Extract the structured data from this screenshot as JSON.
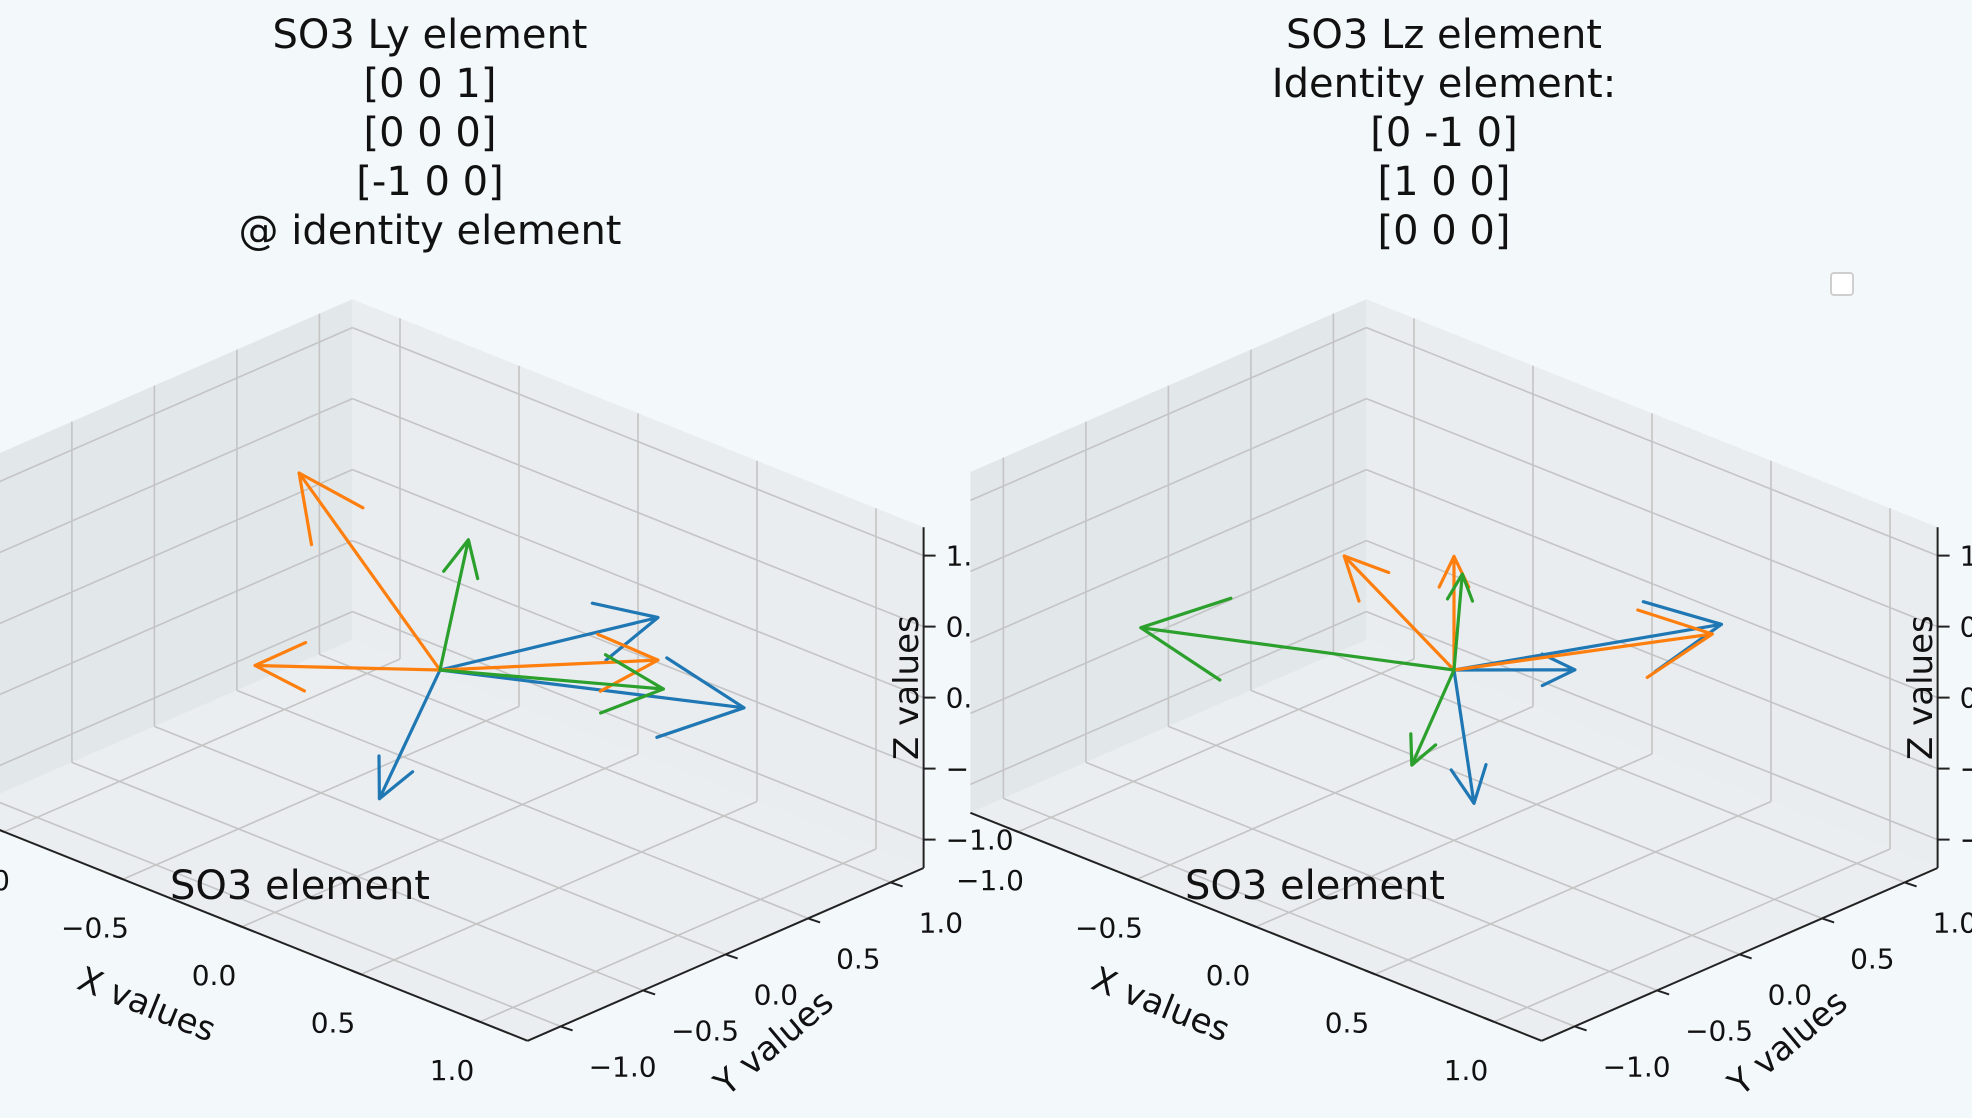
{
  "colors": {
    "blue": "#1f77b4",
    "orange": "#ff7f0e",
    "green": "#2ca02c",
    "pane": "#eef1f3",
    "grid": "#c4c4c4"
  },
  "chart_data": [
    {
      "type": "vector3d",
      "title_lines": [
        "SO3 Ly element",
        "[0 0  1]",
        "[0 0 0]",
        "[-1 0  0]",
        "@ identity element"
      ],
      "annotation": "SO3 element",
      "xlabel": "X values",
      "ylabel": "Y values",
      "zlabel": "Z values",
      "xlim": [
        -1.2,
        1.2
      ],
      "ylim": [
        -1.2,
        1.2
      ],
      "zlim": [
        -1.2,
        1.2
      ],
      "ticks": [
        -1.0,
        -0.5,
        0.0,
        0.5,
        1.0
      ],
      "tick_labels": [
        "−1.0",
        "−0.5",
        "0.0",
        "0.5",
        "1.0"
      ],
      "origin": [
        0,
        0,
        0
      ],
      "series": [
        {
          "name": "blue",
          "color": "#1f77b4",
          "vectors": [
            [
              0.3,
              -0.8,
              -0.3
            ],
            [
              1.0,
              0.4,
              0.2
            ],
            [
              0.5,
              0.6,
              0.4
            ]
          ]
        },
        {
          "name": "orange",
          "color": "#ff7f0e",
          "vectors": [
            [
              -0.8,
              0.3,
              0.7
            ],
            [
              0.5,
              0.6,
              0.1
            ],
            [
              -0.5,
              -0.4,
              -0.1
            ]
          ]
        },
        {
          "name": "green",
          "color": "#2ca02c",
          "vectors": [
            [
              0.8,
              0.2,
              0.3
            ],
            [
              0.05,
              0.1,
              0.9
            ]
          ]
        }
      ]
    },
    {
      "type": "vector3d",
      "title_lines": [
        "SO3 Lz element",
        "Identity element:",
        "[0 -1  0]",
        "[1  0  0]",
        "[0  0  0]"
      ],
      "annotation": "SO3 element",
      "xlabel": "X values",
      "ylabel": "Y values",
      "zlabel": "Z values",
      "xlim": [
        -1.2,
        1.2
      ],
      "ylim": [
        -1.2,
        1.2
      ],
      "zlim": [
        -1.2,
        1.2
      ],
      "ticks": [
        -1.0,
        -0.5,
        0.0,
        0.5,
        1.0
      ],
      "tick_labels": [
        "−1.0",
        "−0.5",
        "0.0",
        "0.5",
        "1.0"
      ],
      "origin": [
        0,
        0,
        0
      ],
      "series": [
        {
          "name": "blue",
          "color": "#1f77b4",
          "vectors": [
            [
              0.5,
              -0.6,
              -0.3
            ],
            [
              0.5,
              0.9,
              0.2
            ],
            [
              0.3,
              0.3,
              0.05
            ]
          ]
        },
        {
          "name": "orange",
          "color": "#ff7f0e",
          "vectors": [
            [
              -0.6,
              0.2,
              0.3
            ],
            [
              0.6,
              0.7,
              0.3
            ],
            [
              0.0,
              0.0,
              0.8
            ]
          ]
        },
        {
          "name": "green",
          "color": "#2ca02c",
          "vectors": [
            [
              -0.9,
              -0.6,
              0.0
            ],
            [
              0.1,
              -0.4,
              -0.4
            ],
            [
              0.0,
              0.05,
              0.65
            ]
          ]
        }
      ]
    }
  ]
}
